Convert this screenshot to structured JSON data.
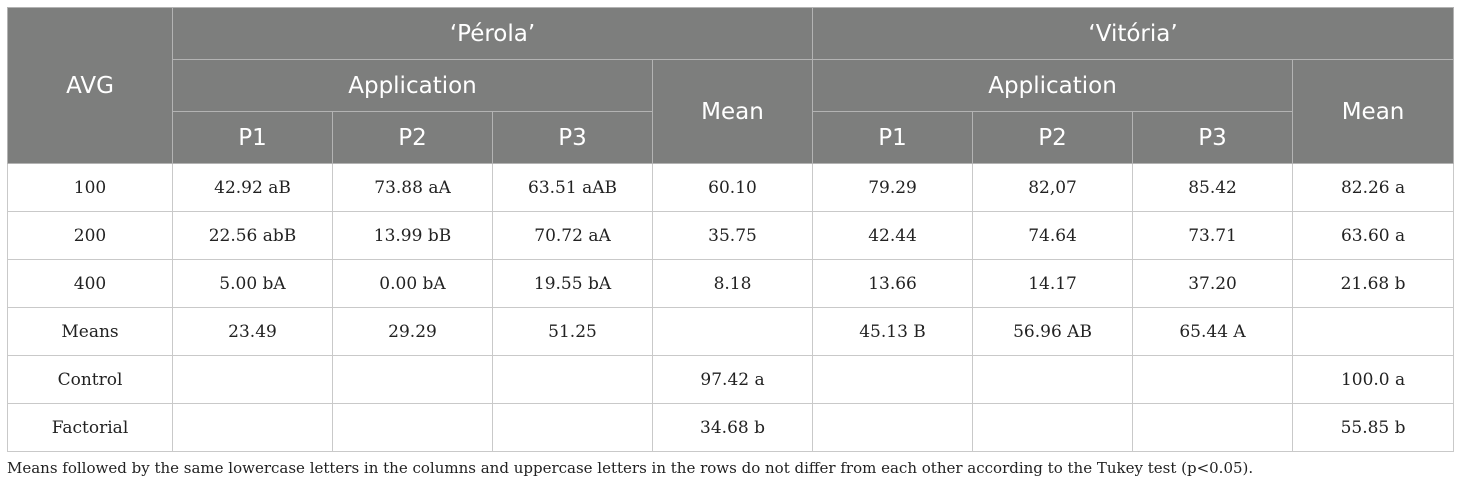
{
  "table": {
    "header": {
      "avg_label": "AVG",
      "cultivars": [
        "‘Pérola’",
        "‘Vitória’"
      ],
      "application_label": "Application",
      "mean_label": "Mean",
      "app_columns": [
        "P1",
        "P2",
        "P3"
      ]
    },
    "rows": [
      {
        "label": "100",
        "perola": [
          "42.92 aB",
          "73.88 aA",
          "63.51 aAB",
          "60.10"
        ],
        "vitoria": [
          "79.29",
          "82,07",
          "85.42",
          "82.26 a"
        ]
      },
      {
        "label": "200",
        "perola": [
          "22.56 abB",
          "13.99 bB",
          "70.72 aA",
          "35.75"
        ],
        "vitoria": [
          "42.44",
          "74.64",
          "73.71",
          "63.60 a"
        ]
      },
      {
        "label": "400",
        "perola": [
          "5.00 bA",
          "0.00 bA",
          "19.55 bA",
          "8.18"
        ],
        "vitoria": [
          "13.66",
          "14.17",
          "37.20",
          "21.68 b"
        ]
      },
      {
        "label": "Means",
        "perola": [
          "23.49",
          "29.29",
          "51.25",
          ""
        ],
        "vitoria": [
          "45.13 B",
          "56.96 AB",
          "65.44 A",
          ""
        ]
      },
      {
        "label": "Control",
        "perola": [
          "",
          "",
          "",
          "97.42 a"
        ],
        "vitoria": [
          "",
          "",
          "",
          "100.0 a"
        ]
      },
      {
        "label": "Factorial",
        "perola": [
          "",
          "",
          "",
          "34.68 b"
        ],
        "vitoria": [
          "",
          "",
          "",
          "55.85 b"
        ]
      }
    ]
  },
  "footnote": "Means followed by the same lowercase letters in the columns and uppercase letters in the rows do not differ from each other according to the Tukey test (p<0.05)."
}
